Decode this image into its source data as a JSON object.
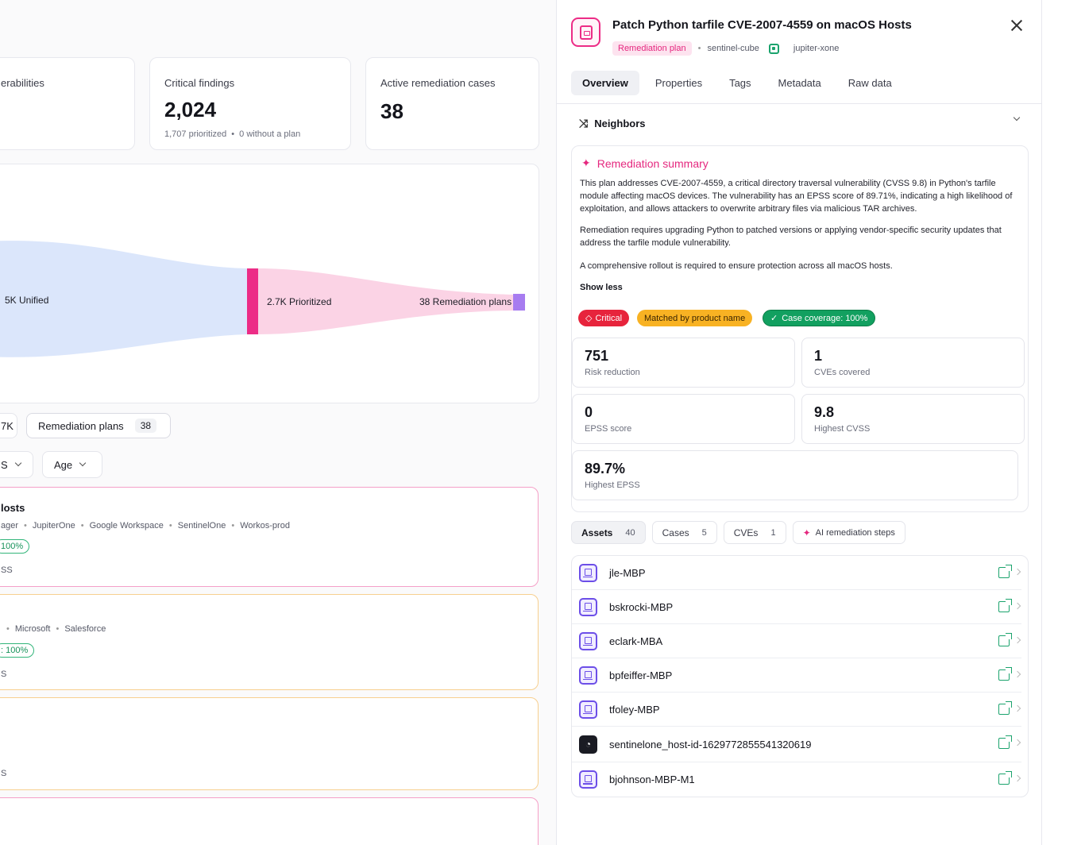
{
  "stats": [
    {
      "label": "erabilities",
      "value": "",
      "sub": ""
    },
    {
      "label": "Critical findings",
      "value": "2,024",
      "sub_a": "1,707 prioritized",
      "sub_b": "0 without a plan"
    },
    {
      "label": "Active remediation cases",
      "value": "38"
    }
  ],
  "sankey": {
    "unified": "5K Unified",
    "prioritized": "2.7K Prioritized",
    "plans": "38 Remediation plans",
    "colors": {
      "unified": "#dbe6fb",
      "prioritized": "#fbd3e5",
      "bar": "#ec2c86",
      "end": "#a77cf0"
    }
  },
  "filters": {
    "pill_a": "7K",
    "pill_b_label": "Remediation plans",
    "pill_b_count": "38",
    "dropdown_a": "S",
    "dropdown_b": "Age"
  },
  "plans": [
    {
      "title": "losts",
      "sources": [
        "ager",
        "JupiterOne",
        "Google Workspace",
        "SentinelOne",
        "Workos-prod"
      ],
      "coverage": "100%",
      "cvss": "SS",
      "border": "#f5a0c8"
    },
    {
      "title": "",
      "sources": [
        "",
        "Microsoft",
        "Salesforce"
      ],
      "coverage": ": 100%",
      "cvss": "S",
      "border": "#f7cf8f"
    },
    {
      "title": "",
      "cvss": "S",
      "border": "#f7cf8f"
    },
    {
      "border": "#f5a0c8"
    }
  ],
  "drawer": {
    "title": "Patch Python tarfile CVE-2007-4559 on macOS Hosts",
    "badge": "Remediation plan",
    "workspace": "sentinel-cube",
    "integration": "jupiter-xone",
    "tabs": [
      "Overview",
      "Properties",
      "Tags",
      "Metadata",
      "Raw data"
    ],
    "neighbors": "Neighbors",
    "summary": {
      "title": "Remediation summary",
      "p1": "This plan addresses CVE-2007-4559, a critical directory traversal vulnerability (CVSS 9.8) in Python's tarfile module affecting macOS devices. The vulnerability has an EPSS score of 89.71%, indicating a high likelihood of exploitation, and allows attackers to overwrite arbitrary files via malicious TAR archives.",
      "p2": "Remediation requires upgrading Python to patched versions or applying vendor-specific security updates that address the tarfile module vulnerability.",
      "p3": "A comprehensive rollout is required to ensure protection across all macOS hosts.",
      "show_less": "Show less"
    },
    "tags": {
      "critical": "Critical",
      "match": "Matched by product name",
      "coverage": "Case coverage: 100%"
    },
    "metrics": [
      {
        "value": "751",
        "label": "Risk reduction"
      },
      {
        "value": "1",
        "label": "CVEs covered"
      },
      {
        "value": "0",
        "label": "EPSS score"
      },
      {
        "value": "9.8",
        "label": "Highest CVSS"
      },
      {
        "value": "89.7%",
        "label": "Highest EPSS"
      }
    ],
    "subtabs": [
      {
        "label": "Assets",
        "count": "40"
      },
      {
        "label": "Cases",
        "count": "5"
      },
      {
        "label": "CVEs",
        "count": "1"
      },
      {
        "label": "AI remediation steps"
      }
    ],
    "assets": [
      {
        "name": "jle-MBP",
        "icon": "laptop-icon"
      },
      {
        "name": "bskrocki-MBP",
        "icon": "laptop-icon"
      },
      {
        "name": "eclark-MBA",
        "icon": "laptop-icon"
      },
      {
        "name": "bpfeiffer-MBP",
        "icon": "laptop-icon"
      },
      {
        "name": "tfoley-MBP",
        "icon": "laptop-icon"
      },
      {
        "name": "sentinelone_host-id-1629772855541320619",
        "icon": "sentinelone-icon"
      },
      {
        "name": "bjohnson-MBP-M1",
        "icon": "laptop-icon"
      }
    ]
  }
}
